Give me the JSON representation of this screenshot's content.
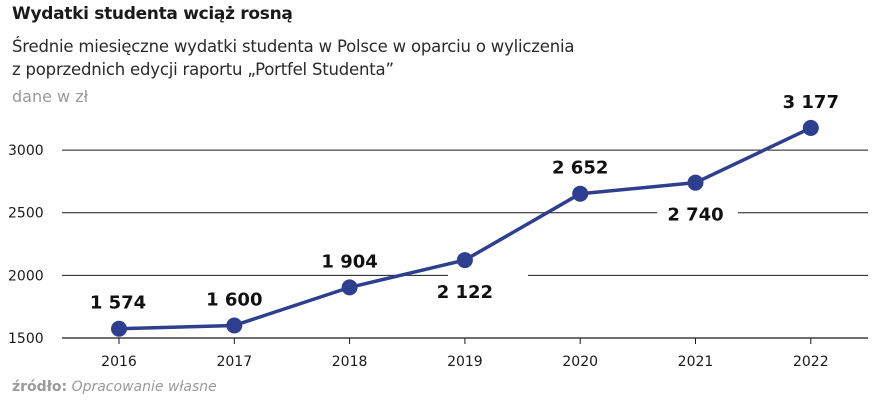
{
  "header": {
    "title": "Wydatki studenta wciąż rosną",
    "subtitle_line1": "Średnie miesięczne wydatki studenta w Polsce w oparciu o wyliczenia",
    "subtitle_line2": "z poprzednich edycji raportu „Portfel Studenta”",
    "unit": "dane w zł"
  },
  "source": {
    "label": "źródło:",
    "text": "Opracowanie własne"
  },
  "colors": {
    "line": "#2e3f8f",
    "marker": "#2e3f8f",
    "grid": "#1a1a1a"
  },
  "chart_data": {
    "type": "line",
    "categories": [
      "2016",
      "2017",
      "2018",
      "2019",
      "2020",
      "2021",
      "2022"
    ],
    "series": [
      {
        "values": [
          1574,
          1600,
          1904,
          2122,
          2652,
          2740,
          3177
        ],
        "data_labels": [
          "1 574",
          "1 600",
          "1 904",
          "2 122",
          "2 652",
          "2 740",
          "3 177"
        ],
        "label_side": [
          "above",
          "above",
          "above",
          "below",
          "above",
          "below",
          "above"
        ]
      }
    ],
    "yticks": [
      "1500",
      "2000",
      "2500",
      "3000"
    ],
    "ylim": [
      1500,
      3400
    ],
    "grid": true,
    "legend": "none"
  }
}
